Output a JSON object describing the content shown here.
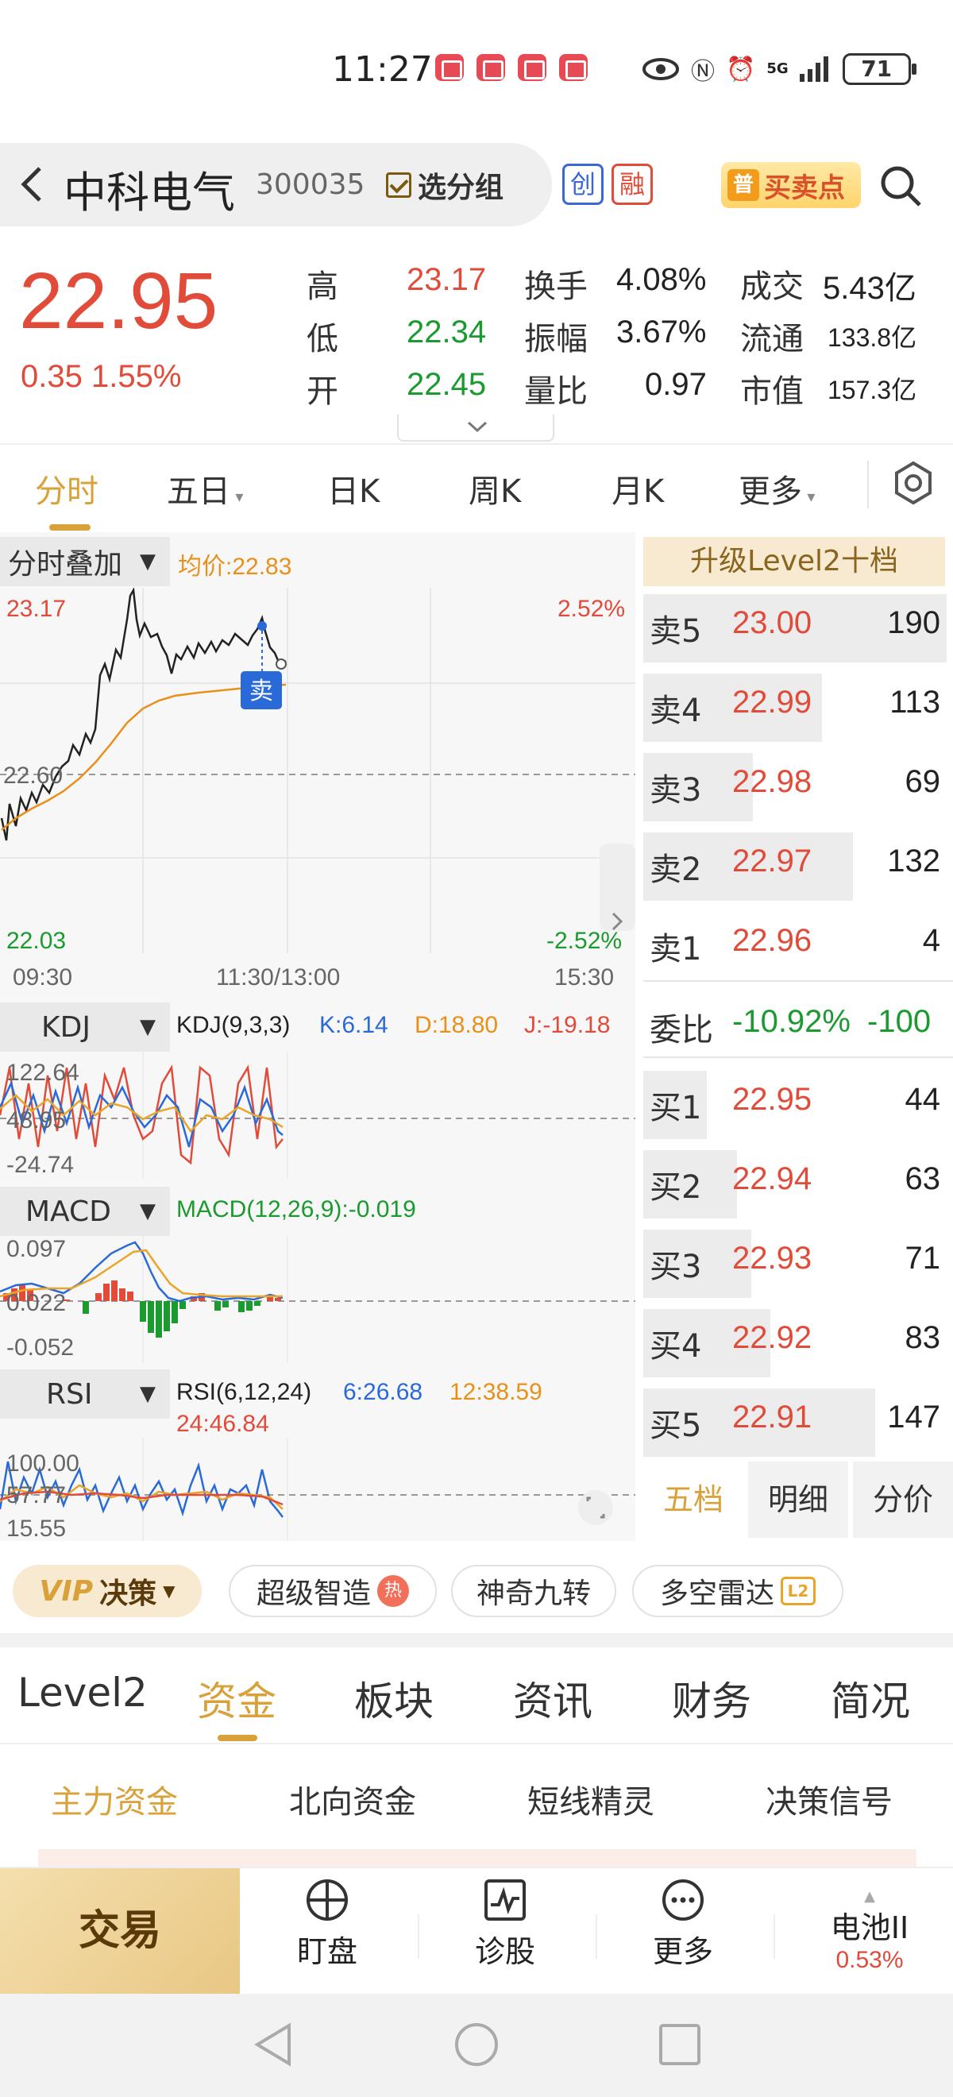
{
  "status": {
    "time": "11:27",
    "network": "5G",
    "battery": "71"
  },
  "header": {
    "stock_name": "中科电气",
    "stock_code": "300035",
    "group_button": "选分组",
    "tag_chuang": "创",
    "tag_rong": "融",
    "trade_point": "买卖点",
    "trade_point_badge": "普"
  },
  "quote": {
    "price": "22.95",
    "change": "0.35",
    "change_pct": "1.55%",
    "fields": [
      {
        "label": "高",
        "value": "23.17"
      },
      {
        "label": "低",
        "value": "22.34"
      },
      {
        "label": "开",
        "value": "22.45"
      },
      {
        "label": "换手",
        "value": "4.08%"
      },
      {
        "label": "振幅",
        "value": "3.67%"
      },
      {
        "label": "量比",
        "value": "0.97"
      },
      {
        "label": "成交",
        "value": "5.43亿"
      },
      {
        "label": "流通",
        "value": "133.8亿"
      },
      {
        "label": "市值",
        "value": "157.3亿"
      }
    ],
    "colors": {
      "up": "#e04b3a",
      "down": "#1a9a2f"
    }
  },
  "period_tabs": [
    "分时",
    "五日",
    "日K",
    "周K",
    "月K",
    "更多"
  ],
  "period_active": "分时",
  "intraday": {
    "overlay_label": "分时叠加",
    "avg_label": "均价:22.83",
    "y_high": "23.17",
    "y_mid": "22.60",
    "y_low": "22.03",
    "pct_high": "2.52%",
    "pct_low": "-2.52%",
    "times": [
      "09:30",
      "11:30/13:00",
      "15:30"
    ],
    "sell_marker": "卖"
  },
  "kdj": {
    "name": "KDJ",
    "params": "KDJ(9,3,3)",
    "k": "K:6.14",
    "d": "D:18.80",
    "j": "J:-19.18",
    "y1": "122.64",
    "y2": "48.95",
    "y3": "-24.74"
  },
  "macd": {
    "name": "MACD",
    "params": "MACD(12,26,9):-0.019",
    "y1": "0.097",
    "y2": "0.022",
    "y3": "-0.052"
  },
  "rsi": {
    "name": "RSI",
    "params": "RSI(6,12,24)",
    "r6": "6:26.68",
    "r12": "12:38.59",
    "r24": "24:46.84",
    "y1": "100.00",
    "y2": "57.77",
    "y3": "15.55"
  },
  "order_book": {
    "title": "升级Level2十档",
    "asks": [
      {
        "label": "卖5",
        "price": "23.00",
        "vol": "190",
        "bar": 1.0
      },
      {
        "label": "卖4",
        "price": "22.99",
        "vol": "113",
        "bar": 0.59
      },
      {
        "label": "卖3",
        "price": "22.98",
        "vol": "69",
        "bar": 0.36
      },
      {
        "label": "卖2",
        "price": "22.97",
        "vol": "132",
        "bar": 0.69
      },
      {
        "label": "卖1",
        "price": "22.96",
        "vol": "4",
        "bar": 0.02
      }
    ],
    "ratio_label": "委比",
    "ratio_value": "-10.92%",
    "ratio_diff": "-100",
    "bids": [
      {
        "label": "买1",
        "price": "22.95",
        "vol": "44",
        "bar": 0.23
      },
      {
        "label": "买2",
        "price": "22.94",
        "vol": "63",
        "bar": 0.33
      },
      {
        "label": "买3",
        "price": "22.93",
        "vol": "71",
        "bar": 0.37
      },
      {
        "label": "买4",
        "price": "22.92",
        "vol": "83",
        "bar": 0.44
      },
      {
        "label": "买5",
        "price": "22.91",
        "vol": "147",
        "bar": 0.77
      }
    ],
    "tabs": [
      "五档",
      "明细",
      "分价"
    ]
  },
  "pills": {
    "vip": "决策",
    "vip_v": "VIP",
    "p1": "超级智造",
    "p1_badge": "热",
    "p2": "神奇九转",
    "p3": "多空雷达",
    "p3_badge": "L2"
  },
  "info_tabs": [
    "Level2",
    "资金",
    "板块",
    "资讯",
    "财务",
    "简况"
  ],
  "info_active": "资金",
  "sub_tabs": [
    "主力资金",
    "北向资金",
    "短线精灵",
    "决策信号"
  ],
  "bottom_nav": {
    "trade": "交易",
    "watch": "盯盘",
    "diagnose": "诊股",
    "more": "更多",
    "sector": "电池II",
    "sector_pct": "0.53%"
  }
}
